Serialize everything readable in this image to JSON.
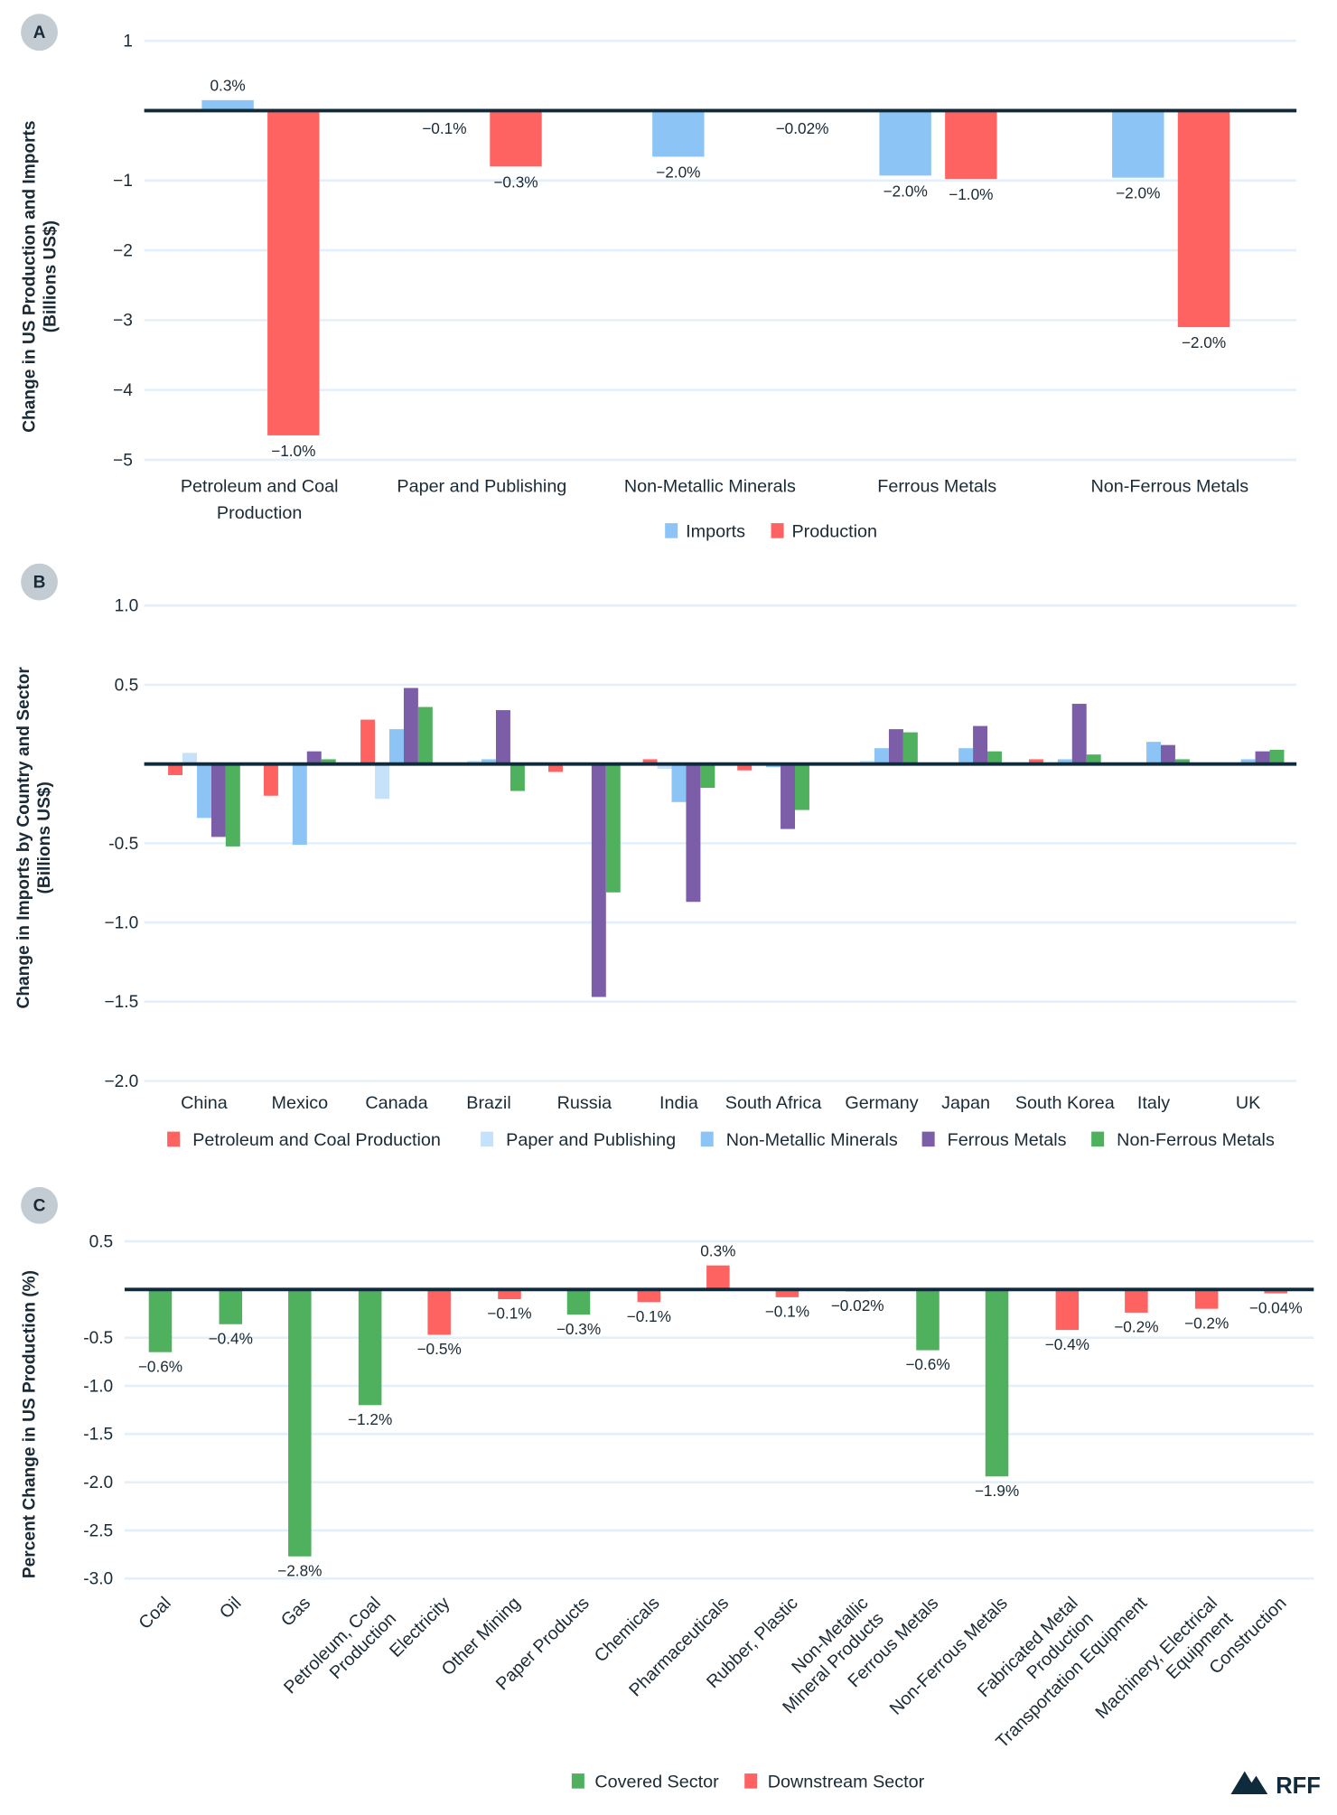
{
  "colors": {
    "grid": "#E3EFFA",
    "zero": "#0F2A3A",
    "badge": "#C3CCD2",
    "imports": "#8CC5F5",
    "production": "#FF6361",
    "paper": "#C5E2FA",
    "nonmetallic": "#8CC5F5",
    "ferrous": "#7B5EA7",
    "nonferrous": "#4FB05E",
    "covered": "#4FB05E",
    "downstream": "#FF6361"
  },
  "logo": {
    "text": "RFF"
  },
  "chart_data": [
    {
      "panel": "A",
      "type": "bar",
      "ylabel": [
        "Change in US Production and Imports",
        "(Billions US$)"
      ],
      "ylim": [
        -5,
        1
      ],
      "yticks": [
        1,
        -1,
        -2,
        -3,
        -4,
        -5
      ],
      "tick_labels": [
        "1",
        "−1",
        "−2",
        "−3",
        "−4",
        "−5"
      ],
      "categories": [
        [
          "Petroleum and Coal",
          "Production"
        ],
        [
          "Paper and Publishing"
        ],
        [
          "Non-Metallic Minerals"
        ],
        [
          "Ferrous Metals"
        ],
        [
          "Non-Ferrous Metals"
        ]
      ],
      "legend_position": "bottom",
      "grid": true,
      "series": [
        {
          "name": "Imports",
          "color_key": "imports",
          "values": [
            0.15,
            -0.01,
            -0.66,
            -0.93,
            -0.96
          ],
          "data_labels": [
            "0.3%",
            "−0.1%",
            "−2.0%",
            "−2.0%",
            "−2.0%"
          ]
        },
        {
          "name": "Production",
          "color_key": "production",
          "values": [
            -4.65,
            -0.8,
            -0.005,
            -0.98,
            -3.1
          ],
          "data_labels": [
            "−1.0%",
            "−0.3%",
            "−0.02%",
            "−1.0%",
            "−2.0%"
          ]
        }
      ]
    },
    {
      "panel": "B",
      "type": "bar",
      "ylabel": [
        "Change in Imports by Country and Sector",
        "(Billions US$)"
      ],
      "ylim": [
        -2,
        1
      ],
      "yticks": [
        1,
        0.5,
        -0.5,
        -1,
        -1.5,
        -2
      ],
      "tick_labels": [
        "1.0",
        "0.5",
        "-0.5",
        "−1.0",
        "−1.5",
        "−2.0"
      ],
      "categories": [
        "China",
        "Mexico",
        "Canada",
        "Brazil",
        "Russia",
        "India",
        "South Africa",
        "Germany",
        "Japan",
        "South Korea",
        "Italy",
        "UK"
      ],
      "legend_position": "bottom",
      "grid": true,
      "series": [
        {
          "name": "Petroleum and Coal Production",
          "color_key": "production",
          "values": [
            -0.07,
            -0.2,
            0.28,
            0.01,
            -0.05,
            0.03,
            -0.04,
            0,
            0,
            0.03,
            0,
            0
          ]
        },
        {
          "name": "Paper and Publishing",
          "color_key": "paper",
          "values": [
            0.07,
            0,
            -0.22,
            0.02,
            0,
            -0.03,
            0,
            0.02,
            0,
            0,
            0,
            0.01
          ]
        },
        {
          "name": "Non-Metallic Minerals",
          "color_key": "nonmetallic",
          "values": [
            -0.34,
            -0.51,
            0.22,
            0.03,
            0,
            -0.24,
            -0.02,
            0.1,
            0.1,
            0.03,
            0.14,
            0.03
          ]
        },
        {
          "name": "Ferrous Metals",
          "color_key": "ferrous",
          "values": [
            -0.46,
            0.08,
            0.48,
            0.34,
            -1.47,
            -0.87,
            -0.41,
            0.22,
            0.24,
            0.38,
            0.12,
            0.08
          ]
        },
        {
          "name": "Non-Ferrous Metals",
          "color_key": "nonferrous",
          "values": [
            -0.52,
            0.03,
            0.36,
            -0.17,
            -0.81,
            -0.15,
            -0.29,
            0.2,
            0.08,
            0.06,
            0.03,
            0.09
          ]
        }
      ]
    },
    {
      "panel": "C",
      "type": "bar",
      "ylabel": [
        "Percent Change in US Production (%)"
      ],
      "ylim": [
        -3,
        0.5
      ],
      "yticks": [
        0.5,
        -0.5,
        -1,
        -1.5,
        -2,
        -2.5,
        -3
      ],
      "tick_labels": [
        "0.5",
        "-0.5",
        "-1.0",
        "-1.5",
        "-2.0",
        "-2.5",
        "-3.0"
      ],
      "categories": [
        [
          "Coal"
        ],
        [
          "Oil"
        ],
        [
          "Gas"
        ],
        [
          "Petroleum, Coal",
          "Production"
        ],
        [
          "Electricity"
        ],
        [
          "Other Mining"
        ],
        [
          "Paper Products"
        ],
        [
          "Chemicals"
        ],
        [
          "Pharmaceuticals"
        ],
        [
          "Rubber, Plastic"
        ],
        [
          "Non-Metallic",
          "Mineral Products"
        ],
        [
          "Ferrous Metals"
        ],
        [
          "Non-Ferrous Metals"
        ],
        [
          "Fabricated Metal",
          "Production"
        ],
        [
          "Transportation Equipment"
        ],
        [
          "Machinery, Electrical",
          "Equipment"
        ],
        [
          "Construction"
        ]
      ],
      "legend": [
        {
          "name": "Covered Sector",
          "color_key": "covered"
        },
        {
          "name": "Downstream Sector",
          "color_key": "downstream"
        }
      ],
      "legend_position": "bottom",
      "grid": true,
      "values": [
        -0.65,
        -0.36,
        -2.77,
        -1.2,
        -0.47,
        -0.1,
        -0.26,
        -0.13,
        0.25,
        -0.08,
        -0.02,
        -0.63,
        -1.94,
        -0.42,
        -0.24,
        -0.2,
        -0.04
      ],
      "sector": [
        "covered",
        "covered",
        "covered",
        "covered",
        "downstream",
        "downstream",
        "covered",
        "downstream",
        "downstream",
        "downstream",
        "covered",
        "covered",
        "covered",
        "downstream",
        "downstream",
        "downstream",
        "downstream"
      ],
      "data_labels": [
        "−0.6%",
        "−0.4%",
        "−2.8%",
        "−1.2%",
        "−0.5%",
        "−0.1%",
        "−0.3%",
        "−0.1%",
        "0.3%",
        "−0.1%",
        "−0.02%",
        "−0.6%",
        "−1.9%",
        "−0.4%",
        "−0.2%",
        "−0.2%",
        "−0.04%"
      ]
    }
  ]
}
